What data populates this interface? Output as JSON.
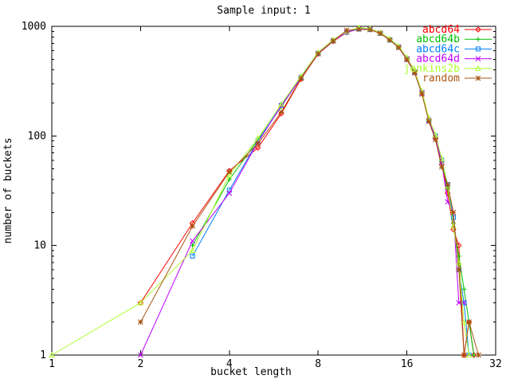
{
  "title": "Sample input: 1",
  "colors": {
    "background": "#ffffff",
    "axis": "#000000",
    "text": "#000000"
  },
  "chart_data": {
    "type": "line",
    "title": "Sample input: 1",
    "xlabel": "bucket length",
    "ylabel": "number of buckets",
    "x_scale": "log2",
    "y_scale": "log10",
    "xlim": [
      1,
      32
    ],
    "ylim": [
      1,
      1000
    ],
    "x_ticks": [
      1,
      2,
      4,
      8,
      16,
      32
    ],
    "y_ticks": [
      1,
      10,
      100,
      1000
    ],
    "grid": false,
    "legend_position": "top-right-inside",
    "series": [
      {
        "name": "abcd64",
        "color": "#ff0000",
        "marker": "diamond",
        "points": [
          [
            2,
            3
          ],
          [
            3,
            16
          ],
          [
            4,
            48
          ],
          [
            5,
            78
          ],
          [
            6,
            160
          ],
          [
            7,
            330
          ],
          [
            8,
            560
          ],
          [
            9,
            730
          ],
          [
            10,
            880
          ],
          [
            11,
            950
          ],
          [
            12,
            945
          ],
          [
            13,
            870
          ],
          [
            14,
            755
          ],
          [
            15,
            650
          ],
          [
            16,
            505
          ],
          [
            17,
            390
          ],
          [
            18,
            245
          ],
          [
            19,
            140
          ],
          [
            20,
            95
          ],
          [
            21,
            55
          ],
          [
            22,
            30
          ],
          [
            23,
            14
          ],
          [
            24,
            10
          ],
          [
            25,
            1
          ],
          [
            26,
            2
          ],
          [
            27,
            1
          ]
        ]
      },
      {
        "name": "abcd64b",
        "color": "#00c000",
        "marker": "plus",
        "points": [
          [
            3,
            10
          ],
          [
            4,
            40
          ],
          [
            5,
            92
          ],
          [
            6,
            185
          ],
          [
            7,
            345
          ],
          [
            8,
            575
          ],
          [
            9,
            745
          ],
          [
            10,
            890
          ],
          [
            11,
            955
          ],
          [
            12,
            940
          ],
          [
            13,
            875
          ],
          [
            14,
            765
          ],
          [
            15,
            655
          ],
          [
            16,
            515
          ],
          [
            17,
            385
          ],
          [
            18,
            250
          ],
          [
            19,
            142
          ],
          [
            20,
            98
          ],
          [
            21,
            58
          ],
          [
            22,
            33
          ],
          [
            23,
            16
          ],
          [
            24,
            8
          ],
          [
            25,
            4
          ],
          [
            26,
            2
          ],
          [
            27,
            1
          ]
        ]
      },
      {
        "name": "abcd64c",
        "color": "#0080ff",
        "marker": "square",
        "points": [
          [
            3,
            8
          ],
          [
            4,
            32
          ],
          [
            5,
            90
          ],
          [
            6,
            190
          ],
          [
            7,
            340
          ],
          [
            8,
            565
          ],
          [
            9,
            740
          ],
          [
            10,
            885
          ],
          [
            11,
            945
          ],
          [
            12,
            935
          ],
          [
            13,
            865
          ],
          [
            14,
            750
          ],
          [
            15,
            645
          ],
          [
            16,
            500
          ],
          [
            17,
            380
          ],
          [
            18,
            248
          ],
          [
            19,
            138
          ],
          [
            20,
            100
          ],
          [
            21,
            60
          ],
          [
            22,
            36
          ],
          [
            23,
            18
          ],
          [
            24,
            6
          ],
          [
            25,
            3
          ],
          [
            26,
            1
          ]
        ]
      },
      {
        "name": "abcd64d",
        "color": "#c000ff",
        "marker": "x",
        "points": [
          [
            2,
            1
          ],
          [
            3,
            11
          ],
          [
            4,
            30
          ],
          [
            5,
            88
          ],
          [
            6,
            188
          ],
          [
            7,
            338
          ],
          [
            8,
            568
          ],
          [
            9,
            742
          ],
          [
            10,
            888
          ],
          [
            11,
            948
          ],
          [
            12,
            938
          ],
          [
            13,
            868
          ],
          [
            14,
            752
          ],
          [
            15,
            648
          ],
          [
            16,
            508
          ],
          [
            17,
            382
          ],
          [
            18,
            246
          ],
          [
            19,
            139
          ],
          [
            20,
            96
          ],
          [
            21,
            57
          ],
          [
            22,
            25
          ],
          [
            23,
            20
          ],
          [
            24,
            3
          ],
          [
            25,
            3
          ]
        ]
      },
      {
        "name": "jenkins2b",
        "color": "#adff2f",
        "marker": "triangle",
        "points": [
          [
            1,
            1
          ],
          [
            2,
            3
          ],
          [
            3,
            9
          ],
          [
            4,
            44
          ],
          [
            5,
            95
          ],
          [
            6,
            195
          ],
          [
            7,
            350
          ],
          [
            8,
            580
          ],
          [
            9,
            755
          ],
          [
            10,
            900
          ],
          [
            11,
            975
          ],
          [
            12,
            950
          ],
          [
            13,
            880
          ],
          [
            14,
            770
          ],
          [
            15,
            660
          ],
          [
            16,
            520
          ],
          [
            17,
            395
          ],
          [
            18,
            255
          ],
          [
            19,
            145
          ],
          [
            20,
            102
          ],
          [
            21,
            62
          ],
          [
            22,
            35
          ],
          [
            23,
            15
          ],
          [
            24,
            7
          ],
          [
            25,
            2
          ],
          [
            26,
            1
          ]
        ]
      },
      {
        "name": "random",
        "color": "#a85410",
        "marker": "asterisk",
        "points": [
          [
            2,
            2
          ],
          [
            3,
            15
          ],
          [
            4,
            47
          ],
          [
            5,
            85
          ],
          [
            6,
            165
          ],
          [
            7,
            335
          ],
          [
            8,
            560
          ],
          [
            9,
            735
          ],
          [
            10,
            920
          ],
          [
            11,
            940
          ],
          [
            12,
            930
          ],
          [
            13,
            860
          ],
          [
            14,
            748
          ],
          [
            15,
            640
          ],
          [
            16,
            495
          ],
          [
            17,
            375
          ],
          [
            18,
            240
          ],
          [
            19,
            135
          ],
          [
            20,
            92
          ],
          [
            21,
            52
          ],
          [
            22,
            36
          ],
          [
            23,
            20
          ],
          [
            24,
            6
          ],
          [
            25,
            1
          ],
          [
            26,
            2
          ],
          [
            28,
            1
          ]
        ]
      }
    ]
  }
}
